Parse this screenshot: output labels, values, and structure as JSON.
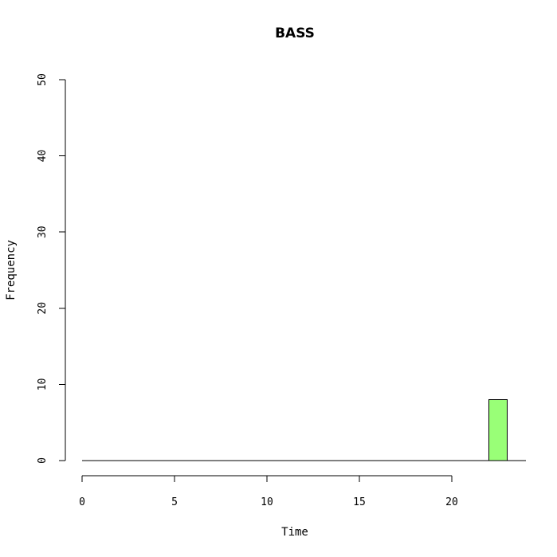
{
  "chart_data": {
    "type": "bar",
    "title": "BASS",
    "xlabel": "Time",
    "ylabel": "Frequency",
    "xlim": [
      -0.5,
      24
    ],
    "ylim": [
      0,
      50
    ],
    "x_ticks": [
      0,
      5,
      10,
      15,
      20
    ],
    "y_ticks": [
      0,
      10,
      20,
      30,
      40,
      50
    ],
    "bins": [
      {
        "start": 0,
        "end": 1,
        "value": 0
      },
      {
        "start": 1,
        "end": 2,
        "value": 0
      },
      {
        "start": 2,
        "end": 3,
        "value": 0
      },
      {
        "start": 3,
        "end": 4,
        "value": 0
      },
      {
        "start": 4,
        "end": 5,
        "value": 0
      },
      {
        "start": 5,
        "end": 6,
        "value": 0
      },
      {
        "start": 6,
        "end": 7,
        "value": 0
      },
      {
        "start": 7,
        "end": 8,
        "value": 0
      },
      {
        "start": 8,
        "end": 9,
        "value": 0
      },
      {
        "start": 9,
        "end": 10,
        "value": 0
      },
      {
        "start": 10,
        "end": 11,
        "value": 0
      },
      {
        "start": 11,
        "end": 12,
        "value": 0
      },
      {
        "start": 12,
        "end": 13,
        "value": 0
      },
      {
        "start": 13,
        "end": 14,
        "value": 0
      },
      {
        "start": 14,
        "end": 15,
        "value": 0
      },
      {
        "start": 15,
        "end": 16,
        "value": 0
      },
      {
        "start": 16,
        "end": 17,
        "value": 0
      },
      {
        "start": 17,
        "end": 18,
        "value": 0
      },
      {
        "start": 18,
        "end": 19,
        "value": 0
      },
      {
        "start": 19,
        "end": 20,
        "value": 0
      },
      {
        "start": 20,
        "end": 21,
        "value": 0
      },
      {
        "start": 21,
        "end": 22,
        "value": 0
      },
      {
        "start": 22,
        "end": 23,
        "value": 8
      }
    ],
    "bar_color": "#99ff77",
    "grid": false,
    "legend": "none"
  }
}
